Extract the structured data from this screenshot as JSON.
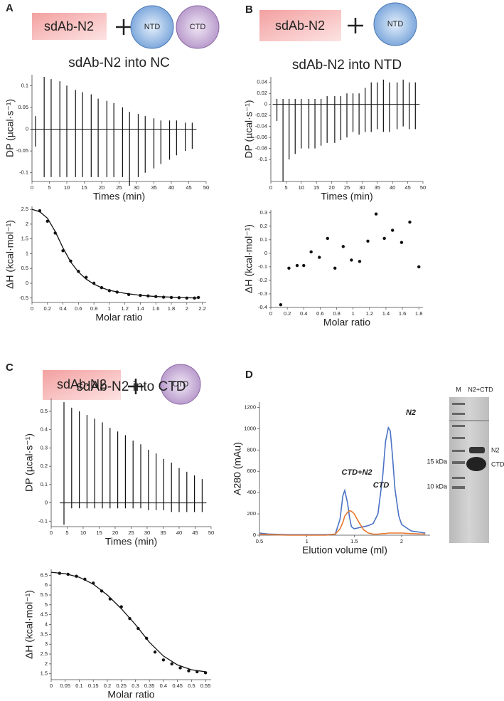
{
  "panels": [
    {
      "label": "A",
      "cartoon": [
        "sdAb-N2",
        "NTD",
        "CTD"
      ]
    },
    {
      "label": "B",
      "cartoon": [
        "sdAb-N2",
        "NTD"
      ]
    },
    {
      "label": "C",
      "cartoon": [
        "sdAb-N2",
        "CTD"
      ]
    },
    {
      "label": "D"
    }
  ],
  "gel": {
    "lanes": [
      "M",
      "N2+CTD"
    ],
    "markers": [
      "15 kDa",
      "10 kDa"
    ],
    "bands": [
      "N2",
      "CTD"
    ]
  },
  "chart_data": [
    {
      "type": "thermogram",
      "title": "sdAb-N2 into NC",
      "x_label": "Times (min)",
      "y_label": "DP (µcal·s⁻¹)",
      "xlim": [
        0,
        50
      ],
      "ylim": [
        -0.12,
        0.125
      ],
      "xticks": [
        0,
        5,
        10,
        15,
        20,
        25,
        30,
        35,
        40,
        45,
        50
      ],
      "yticks": [
        -0.1,
        -0.05,
        0,
        0.05,
        0.1
      ],
      "x": [
        1,
        3.5,
        5.5,
        8,
        10,
        12.5,
        14.5,
        17,
        19,
        21.5,
        23.5,
        26,
        28,
        30.5,
        32.5,
        35,
        37,
        39.5,
        41.5,
        44,
        46
      ],
      "upper": [
        0.03,
        0.12,
        0.115,
        0.11,
        0.1,
        0.09,
        0.085,
        0.08,
        0.07,
        0.065,
        0.06,
        0.05,
        0.04,
        0.035,
        0.03,
        0.025,
        0.02,
        0.02,
        0.02,
        0.015,
        0.015
      ],
      "lower": [
        -0.04,
        -0.11,
        -0.11,
        -0.11,
        -0.11,
        -0.11,
        -0.11,
        -0.11,
        -0.11,
        -0.11,
        -0.11,
        -0.11,
        -0.13,
        -0.11,
        -0.1,
        -0.09,
        -0.08,
        -0.07,
        -0.06,
        -0.05,
        -0.045
      ]
    },
    {
      "type": "scatter",
      "x_label": "Molar ratio",
      "y_label": "ΔH (kcal·mol⁻¹)",
      "xlim": [
        0,
        2.25
      ],
      "ylim": [
        -0.65,
        2.6
      ],
      "xticks": [
        0,
        0.2,
        0.4,
        0.6,
        0.8,
        1,
        1.2,
        1.4,
        1.6,
        1.8,
        2,
        2.2
      ],
      "yticks": [
        -0.5,
        0,
        0.5,
        1,
        1.5,
        2,
        2.5
      ],
      "x": [
        0.1,
        0.2,
        0.3,
        0.4,
        0.5,
        0.6,
        0.7,
        0.8,
        0.9,
        1,
        1.1,
        1.25,
        1.4,
        1.5,
        1.6,
        1.7,
        1.8,
        1.9,
        2,
        2.1,
        2.15
      ],
      "values": [
        2.45,
        2.1,
        1.7,
        1.1,
        0.75,
        0.4,
        0.2,
        0,
        -0.15,
        -0.25,
        -0.3,
        -0.38,
        -0.41,
        -0.43,
        -0.45,
        -0.47,
        -0.48,
        -0.49,
        -0.5,
        -0.5,
        -0.48
      ],
      "fit": {
        "x": [
          0,
          0.1,
          0.2,
          0.3,
          0.4,
          0.5,
          0.6,
          0.7,
          0.8,
          0.9,
          1,
          1.2,
          1.4,
          1.6,
          1.8,
          2,
          2.15
        ],
        "values": [
          2.5,
          2.42,
          2.2,
          1.75,
          1.2,
          0.72,
          0.38,
          0.14,
          -0.03,
          -0.15,
          -0.24,
          -0.34,
          -0.41,
          -0.45,
          -0.47,
          -0.49,
          -0.5
        ]
      }
    },
    {
      "type": "thermogram",
      "title": "sdAb-N2 into NTD",
      "x_label": "Times (min)",
      "y_label": "DP (µcal·s⁻¹)",
      "xlim": [
        0,
        50
      ],
      "ylim": [
        -0.14,
        0.05
      ],
      "xticks": [
        0,
        5,
        10,
        15,
        20,
        25,
        30,
        35,
        40,
        45,
        50
      ],
      "yticks": [
        -0.1,
        -0.08,
        -0.06,
        -0.04,
        -0.02,
        0,
        0.02,
        0.04
      ],
      "x": [
        2,
        4,
        6,
        8,
        10,
        12.5,
        14.5,
        16.5,
        18.5,
        21,
        23,
        25,
        27,
        29,
        31,
        33,
        35,
        37,
        39,
        41.5,
        43.5,
        45.5,
        47.5
      ],
      "upper": [
        0.01,
        0.01,
        0.01,
        0.01,
        0.01,
        0.01,
        0.01,
        0.01,
        0.015,
        0.015,
        0.015,
        0.02,
        0.02,
        0.02,
        0.03,
        0.04,
        0.04,
        0.045,
        0.04,
        0.04,
        0.045,
        0.04,
        0.04
      ],
      "lower": [
        -0.03,
        -0.14,
        -0.1,
        -0.09,
        -0.08,
        -0.08,
        -0.08,
        -0.075,
        -0.07,
        -0.07,
        -0.065,
        -0.06,
        -0.05,
        -0.055,
        -0.05,
        -0.05,
        -0.045,
        -0.05,
        -0.05,
        -0.045,
        -0.04,
        -0.045,
        -0.045
      ]
    },
    {
      "type": "scatter",
      "x_label": "Molar ratio",
      "y_label": "ΔH (kcal·mol⁻¹)",
      "xlim": [
        0,
        1.85
      ],
      "ylim": [
        -0.4,
        0.32
      ],
      "xticks": [
        0,
        0.2,
        0.4,
        0.6,
        0.8,
        1,
        1.2,
        1.4,
        1.6,
        1.8
      ],
      "yticks": [
        -0.4,
        -0.3,
        -0.2,
        -0.1,
        0,
        0.1,
        0.2,
        0.3
      ],
      "x": [
        0.12,
        0.22,
        0.32,
        0.4,
        0.49,
        0.59,
        0.69,
        0.78,
        0.88,
        0.98,
        1.08,
        1.18,
        1.28,
        1.38,
        1.48,
        1.59,
        1.69,
        1.8
      ],
      "values": [
        -0.38,
        -0.11,
        -0.09,
        -0.09,
        0.01,
        -0.03,
        0.11,
        -0.11,
        0.05,
        -0.05,
        -0.06,
        0.09,
        0.29,
        0.11,
        0.17,
        0.08,
        0.23,
        -0.1
      ]
    },
    {
      "type": "thermogram",
      "title": "sdAb-N2 into CTD",
      "x_label": "Times (min)",
      "y_label": "DP (µcal·s⁻¹)",
      "xlim": [
        0,
        50
      ],
      "ylim": [
        -0.13,
        0.57
      ],
      "xticks": [
        0,
        5,
        10,
        15,
        20,
        25,
        30,
        35,
        40,
        45,
        50
      ],
      "yticks": [
        -0.1,
        0,
        0.1,
        0.2,
        0.3,
        0.4,
        0.5
      ],
      "x": [
        4,
        6.4,
        8.8,
        11.2,
        13.6,
        16,
        18.4,
        20.8,
        23.2,
        25.6,
        28,
        30.4,
        32.8,
        35.2,
        37.6,
        40,
        42.4,
        44.8,
        47.2
      ],
      "upper": [
        0.55,
        0.52,
        0.5,
        0.48,
        0.46,
        0.44,
        0.41,
        0.39,
        0.37,
        0.34,
        0.32,
        0.29,
        0.27,
        0.24,
        0.22,
        0.19,
        0.17,
        0.15,
        0.13
      ],
      "lower": [
        -0.12,
        -0.03,
        -0.03,
        -0.03,
        -0.03,
        -0.03,
        -0.03,
        -0.03,
        -0.03,
        -0.03,
        -0.03,
        -0.04,
        -0.04,
        -0.04,
        -0.05,
        -0.05,
        -0.05,
        -0.05,
        -0.05
      ]
    },
    {
      "type": "scatter",
      "x_label": "Molar ratio",
      "y_label": "ΔH (kcal·mol⁻¹)",
      "xlim": [
        0,
        0.57
      ],
      "ylim": [
        1.2,
        6.8
      ],
      "xticks": [
        0,
        0.05,
        0.1,
        0.15,
        0.2,
        0.25,
        0.3,
        0.35,
        0.4,
        0.45,
        0.5,
        0.55
      ],
      "yticks": [
        1.5,
        2,
        2.5,
        3,
        3.5,
        4,
        4.5,
        5,
        5.5,
        6,
        6.5
      ],
      "x": [
        0.03,
        0.06,
        0.09,
        0.12,
        0.15,
        0.18,
        0.21,
        0.25,
        0.28,
        0.31,
        0.34,
        0.37,
        0.4,
        0.43,
        0.46,
        0.49,
        0.52,
        0.55
      ],
      "values": [
        6.6,
        6.55,
        6.45,
        6.3,
        6.1,
        5.7,
        5.3,
        4.9,
        4.3,
        3.8,
        3.3,
        2.6,
        2.2,
        2,
        1.8,
        1.65,
        1.6,
        1.55
      ],
      "fit": {
        "x": [
          0,
          0.05,
          0.1,
          0.15,
          0.2,
          0.25,
          0.3,
          0.35,
          0.4,
          0.45,
          0.5,
          0.55
        ],
        "values": [
          6.65,
          6.58,
          6.4,
          6.05,
          5.5,
          4.8,
          4,
          3.1,
          2.4,
          1.95,
          1.7,
          1.6
        ]
      }
    },
    {
      "type": "line",
      "x_label": "Elution volume (ml)",
      "y_label": "A280 (mAu)",
      "xlim": [
        0.5,
        2.3
      ],
      "ylim": [
        0,
        1250
      ],
      "xticks": [
        0.5,
        1,
        1.5,
        2
      ],
      "yticks": [
        0,
        200,
        400,
        600,
        800,
        1000,
        1200
      ],
      "x": [
        0.5,
        0.6,
        0.8,
        1,
        1.2,
        1.3,
        1.35,
        1.38,
        1.4,
        1.43,
        1.45,
        1.47,
        1.5,
        1.55,
        1.6,
        1.65,
        1.7,
        1.75,
        1.8,
        1.83,
        1.86,
        1.88,
        1.9,
        1.93,
        1.97,
        2,
        2.1,
        2.25
      ],
      "series": [
        {
          "color": "#4a72c4",
          "values": [
            20,
            10,
            5,
            5,
            5,
            10,
            150,
            370,
            420,
            300,
            170,
            80,
            60,
            70,
            80,
            90,
            110,
            200,
            550,
            880,
            1010,
            980,
            780,
            430,
            180,
            100,
            40,
            20
          ]
        },
        {
          "color": "#e8782e",
          "values": [
            10,
            5,
            0,
            0,
            0,
            10,
            60,
            120,
            180,
            215,
            230,
            225,
            200,
            120,
            50,
            20,
            10,
            10,
            15,
            15,
            20,
            20,
            20,
            20,
            20,
            20,
            15,
            10
          ]
        }
      ],
      "annotations": [
        "N2",
        "CTD+N2",
        "CTD"
      ]
    }
  ]
}
